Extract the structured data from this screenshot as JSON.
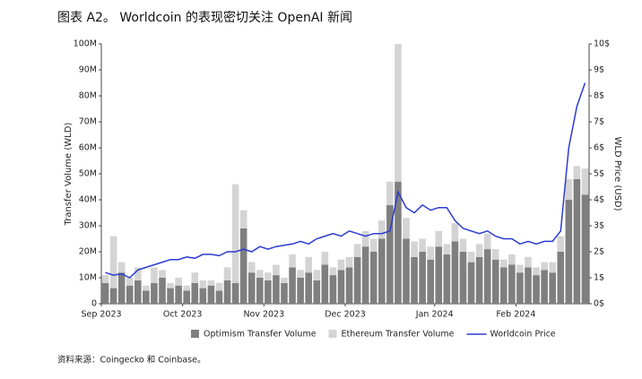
{
  "chart_data": {
    "type": "bar-line",
    "title": "图表 A2。 Worldcoin 的表现密切关注 OpenAI 新闻",
    "y_label": "Transfer Volume (WLD)",
    "y2_label": "WLD Price (USD)",
    "source": "资料来源：Coingecko 和 Coinbase。",
    "categories": [
      "Sep 2023",
      null,
      null,
      null,
      null,
      null,
      null,
      null,
      null,
      null,
      "Oct 2023",
      null,
      null,
      null,
      null,
      null,
      null,
      null,
      null,
      null,
      "Nov 2023",
      null,
      null,
      null,
      null,
      null,
      null,
      null,
      null,
      null,
      "Dec 2023",
      null,
      null,
      null,
      null,
      null,
      null,
      null,
      null,
      null,
      null,
      "Jan 2024",
      null,
      null,
      null,
      null,
      null,
      null,
      null,
      null,
      null,
      "Feb 2024",
      null,
      null,
      null,
      null,
      null,
      null,
      null,
      null
    ],
    "series": [
      {
        "name": "Optimism Transfer Volume",
        "color": "#7f7f7f",
        "values": [
          8,
          6,
          12,
          7,
          9,
          5,
          8,
          10,
          6,
          7,
          5,
          8,
          6,
          7,
          5,
          9,
          8,
          29,
          12,
          10,
          9,
          11,
          8,
          14,
          10,
          12,
          9,
          15,
          11,
          13,
          14,
          18,
          22,
          20,
          25,
          38,
          47,
          25,
          18,
          20,
          17,
          22,
          19,
          24,
          20,
          16,
          18,
          21,
          17,
          14,
          15,
          12,
          14,
          11,
          13,
          12,
          20,
          40,
          48,
          42
        ]
      },
      {
        "name": "Ethereum Transfer Volume",
        "color": "#d4d4d4",
        "values": [
          3,
          20,
          4,
          3,
          5,
          2,
          6,
          3,
          2,
          3,
          2,
          4,
          3,
          2,
          3,
          5,
          38,
          7,
          4,
          3,
          3,
          4,
          2,
          5,
          3,
          6,
          4,
          5,
          3,
          4,
          4,
          5,
          6,
          5,
          7,
          9,
          53,
          8,
          6,
          5,
          5,
          6,
          4,
          7,
          5,
          4,
          5,
          6,
          4,
          3,
          4,
          3,
          4,
          3,
          3,
          4,
          6,
          8,
          5,
          10
        ]
      },
      {
        "name": "Worldcoin Price",
        "color": "#2b3bd1",
        "axis": "y2",
        "values": [
          1.2,
          1.1,
          1.15,
          1.0,
          1.3,
          1.4,
          1.5,
          1.6,
          1.7,
          1.7,
          1.8,
          1.75,
          1.9,
          1.9,
          1.85,
          2.0,
          2.0,
          2.1,
          2.0,
          2.2,
          2.1,
          2.2,
          2.25,
          2.3,
          2.4,
          2.3,
          2.5,
          2.6,
          2.7,
          2.6,
          2.8,
          2.7,
          2.6,
          2.7,
          2.7,
          2.8,
          4.3,
          3.7,
          3.5,
          3.8,
          3.6,
          3.7,
          3.7,
          3.2,
          2.9,
          2.8,
          2.7,
          2.8,
          2.6,
          2.5,
          2.5,
          2.3,
          2.4,
          2.3,
          2.4,
          2.4,
          2.8,
          6.0,
          7.6,
          8.5
        ]
      }
    ],
    "ylim": [
      0,
      100
    ],
    "yticks": [
      0,
      {
        "value": 10,
        "label": "10M"
      },
      {
        "value": 20,
        "label": "20M"
      },
      {
        "value": 30,
        "label": "30M"
      },
      {
        "value": 40,
        "label": "40M"
      },
      {
        "value": 50,
        "label": "50M"
      },
      {
        "value": 60,
        "label": "60M"
      },
      {
        "value": 70,
        "label": "70M"
      },
      {
        "value": 80,
        "label": "80M"
      },
      {
        "value": 90,
        "label": "90M"
      },
      {
        "value": 100,
        "label": "100M"
      }
    ],
    "y2lim": [
      0,
      10
    ],
    "y2ticks": [
      {
        "value": 0,
        "label": "0$"
      },
      {
        "value": 1,
        "label": "1$"
      },
      {
        "value": 2,
        "label": "2$"
      },
      {
        "value": 3,
        "label": "3$"
      },
      {
        "value": 4,
        "label": "4$"
      },
      {
        "value": 5,
        "label": "5$"
      },
      {
        "value": 6,
        "label": "6$"
      },
      {
        "value": 7,
        "label": "7$"
      },
      {
        "value": 8,
        "label": "8$"
      },
      {
        "value": 9,
        "label": "9$"
      },
      {
        "value": 10,
        "label": "10$"
      }
    ]
  }
}
